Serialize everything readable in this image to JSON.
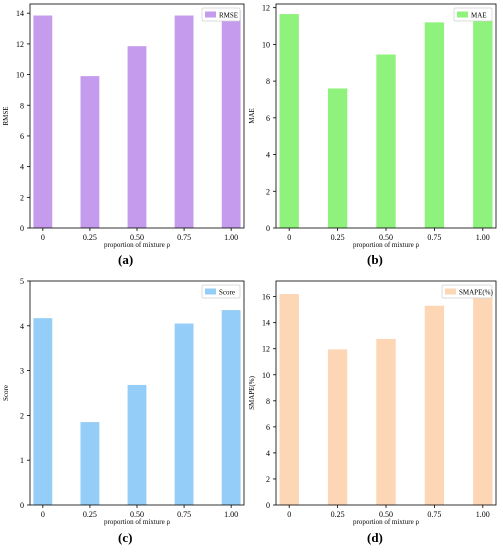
{
  "chart_data": [
    {
      "type": "bar",
      "categories": [
        "0",
        "0.25",
        "0.50",
        "0.75",
        "1.00"
      ],
      "values": [
        13.85,
        9.9,
        11.85,
        13.85,
        14.2
      ],
      "ylabel": "RMSE",
      "xlabel": "proportion of mixture ρ",
      "legend": "RMSE",
      "legend_position": "top-right",
      "ylim": [
        0,
        14.6
      ],
      "yticks": [
        "0",
        "2",
        "4",
        "6",
        "8",
        "10",
        "12",
        "14"
      ],
      "color": "#c49bed",
      "caption": "(a)"
    },
    {
      "type": "bar",
      "categories": [
        "0",
        "0.25",
        "0.50",
        "0.75",
        "1.00"
      ],
      "values": [
        11.65,
        7.6,
        9.45,
        11.2,
        11.3
      ],
      "ylabel": "MAE",
      "xlabel": "proportion of mixture ρ",
      "legend": "MAE",
      "legend_position": "top-right",
      "ylim": [
        0,
        12.2
      ],
      "yticks": [
        "0",
        "2",
        "4",
        "6",
        "8",
        "10",
        "12"
      ],
      "color": "#8ef27c",
      "caption": "(b)"
    },
    {
      "type": "bar",
      "categories": [
        "0",
        "0.25",
        "0.50",
        "0.75",
        "1.00"
      ],
      "values": [
        4.17,
        1.85,
        2.68,
        4.05,
        4.35
      ],
      "ylabel": "Score",
      "xlabel": "proportion of mixture ρ",
      "legend": "Score",
      "legend_position": "top-right",
      "ylim": [
        0,
        5
      ],
      "yticks": [
        "0",
        "1",
        "2",
        "3",
        "4",
        "5"
      ],
      "color": "#93cdf8",
      "caption": "(c)"
    },
    {
      "type": "bar",
      "categories": [
        "0",
        "0.25",
        "0.50",
        "0.75",
        "1.00"
      ],
      "values": [
        16.2,
        11.95,
        12.75,
        15.3,
        16.6
      ],
      "ylabel": "SMAPE(%)",
      "xlabel": "proportion of mixture ρ",
      "legend": "SMAPE(%)",
      "legend_position": "top-right",
      "ylim": [
        0,
        17.2
      ],
      "yticks": [
        "0",
        "2",
        "4",
        "6",
        "8",
        "10",
        "12",
        "14",
        "16"
      ],
      "color": "#fdd6b5",
      "caption": "(d)"
    }
  ]
}
